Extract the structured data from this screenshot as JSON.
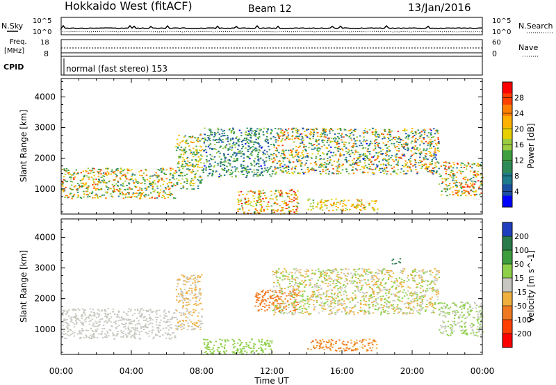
{
  "header": {
    "station": "Hokkaido West (fitACF)",
    "beam": "Beam 12",
    "date": "13/Jan/2016"
  },
  "noise_panel": {
    "left_label": "N.Sky",
    "right_label": "N.Search",
    "left_ticks": [
      "10^5",
      "10^0"
    ],
    "right_ticks": [
      "10^5",
      "10^0"
    ]
  },
  "freq_panel": {
    "left_label": "Freq.",
    "left_unit": "[MHz]",
    "right_label": "Nave",
    "left_ticks": [
      "18",
      "8"
    ],
    "right_ticks": [
      "60",
      "0"
    ]
  },
  "cpid_panel": {
    "label": "CPID",
    "text": "normal (fast stereo) 153"
  },
  "chart_data": [
    {
      "type": "heatmap",
      "name": "Power",
      "ylabel": "Slant Range [km]",
      "xlabel": "",
      "xlim": [
        0,
        24
      ],
      "ylim": [
        180,
        4600
      ],
      "x_ticks": [
        "00:00",
        "04:00",
        "08:00",
        "12:00",
        "16:00",
        "20:00",
        "00:00"
      ],
      "y_ticks": [
        1000,
        2000,
        3000,
        4000
      ],
      "colorbar": {
        "label": "Power [dB]",
        "ticks": [
          28,
          24,
          20,
          16,
          12,
          8,
          4
        ],
        "colors": [
          "#ff0000",
          "#ff4000",
          "#ff8000",
          "#ffb000",
          "#e8d000",
          "#9ccc40",
          "#40a040",
          "#2e8b57",
          "#1f7a8c",
          "#1c4fa0",
          "#0000ff"
        ]
      },
      "features": [
        {
          "x": [
            0.0,
            6.5
          ],
          "range_km": [
            700,
            1700
          ],
          "power_db": [
            8,
            26
          ]
        },
        {
          "x": [
            6.5,
            8.0
          ],
          "range_km": [
            1000,
            2800
          ],
          "power_db": [
            8,
            22
          ]
        },
        {
          "x": [
            8.0,
            12.0
          ],
          "range_km": [
            1400,
            3000
          ],
          "power_db": [
            4,
            16
          ]
        },
        {
          "x": [
            10.0,
            13.5
          ],
          "range_km": [
            200,
            1000
          ],
          "power_db": [
            12,
            28
          ]
        },
        {
          "x": [
            14.0,
            18.0
          ],
          "range_km": [
            300,
            700
          ],
          "power_db": [
            14,
            24
          ]
        },
        {
          "x": [
            12.0,
            21.5
          ],
          "range_km": [
            1500,
            3000
          ],
          "power_db": [
            4,
            26
          ]
        },
        {
          "x": [
            21.5,
            24.0
          ],
          "range_km": [
            800,
            1900
          ],
          "power_db": [
            8,
            28
          ]
        }
      ]
    },
    {
      "type": "heatmap",
      "name": "Velocity",
      "ylabel": "Slant Range [km]",
      "xlabel": "Time UT",
      "xlim": [
        0,
        24
      ],
      "ylim": [
        180,
        4600
      ],
      "x_ticks": [
        "00:00",
        "04:00",
        "08:00",
        "12:00",
        "16:00",
        "20:00",
        "00:00"
      ],
      "y_ticks": [
        1000,
        2000,
        3000,
        4000
      ],
      "colorbar": {
        "label": "Velocity [m s^-1]",
        "ticks": [
          200,
          100,
          50,
          15,
          -15,
          -50,
          -100,
          -200
        ],
        "colors": [
          "#1f3fbf",
          "#2a7a4a",
          "#3e9e3e",
          "#8ed04a",
          "#c8c8c0",
          "#f0b040",
          "#f07820",
          "#ff4000",
          "#ff0000"
        ]
      },
      "features": [
        {
          "x": [
            0.0,
            6.5
          ],
          "range_km": [
            700,
            1700
          ],
          "velocity": [
            -15,
            15
          ]
        },
        {
          "x": [
            6.5,
            8.0
          ],
          "range_km": [
            1000,
            2800
          ],
          "velocity": [
            -50,
            15
          ]
        },
        {
          "x": [
            11.0,
            13.5
          ],
          "range_km": [
            1600,
            2300
          ],
          "velocity": [
            -100,
            -50
          ]
        },
        {
          "x": [
            8.0,
            12.0
          ],
          "range_km": [
            200,
            700
          ],
          "velocity": [
            15,
            50
          ]
        },
        {
          "x": [
            14.0,
            18.0
          ],
          "range_km": [
            300,
            700
          ],
          "velocity": [
            -100,
            -15
          ]
        },
        {
          "x": [
            12.0,
            21.5
          ],
          "range_km": [
            1500,
            3000
          ],
          "velocity": [
            -50,
            50
          ]
        },
        {
          "x": [
            18.8,
            19.3
          ],
          "range_km": [
            3150,
            3350
          ],
          "velocity": [
            100,
            200
          ]
        },
        {
          "x": [
            21.5,
            24.0
          ],
          "range_km": [
            800,
            1900
          ],
          "velocity": [
            -15,
            50
          ]
        }
      ]
    }
  ]
}
